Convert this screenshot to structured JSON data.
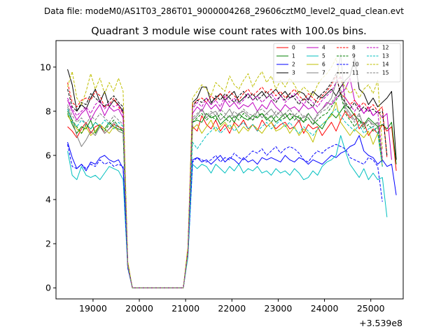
{
  "chart_data": {
    "type": "line",
    "suptitle": "Data file: modeM0/AS1T03_286T01_9000004268_29606cztM0_level2_quad_clean.evt",
    "title": "Quadrant 3 module wise count rates with 100.0s bins.",
    "xlabel": "",
    "ylabel": "",
    "x_offset_label": "+3.539e8",
    "xlim": [
      18200,
      25700
    ],
    "ylim": [
      -0.5,
      11.2
    ],
    "xticks": [
      19000,
      20000,
      21000,
      22000,
      23000,
      24000,
      25000
    ],
    "yticks": [
      0,
      2,
      4,
      6,
      8,
      10
    ],
    "x_start": 18450,
    "x_step": 100,
    "legend_position": "top-right",
    "series": [
      {
        "name": "0",
        "color": "#ff0000",
        "dash": "solid",
        "values": [
          7.3,
          7.1,
          6.8,
          7.2,
          7.5,
          7.0,
          7.3,
          7.4,
          7.0,
          7.2,
          7.4,
          7.3,
          7.2,
          1.0,
          0,
          0,
          0,
          0,
          0,
          0,
          0,
          0,
          0,
          0,
          0,
          0,
          1.6,
          7.3,
          7.1,
          7.8,
          7.4,
          7.2,
          7.6,
          7.1,
          7.4,
          7.0,
          7.5,
          7.3,
          7.6,
          7.2,
          7.4,
          7.1,
          7.6,
          7.3,
          7.5,
          7.2,
          7.4,
          7.5,
          7.2,
          7.3,
          7.6,
          7.0,
          7.4,
          7.2,
          7.3,
          6.9,
          7.2,
          7.5,
          7.1,
          7.6,
          8.0,
          7.7,
          7.9,
          7.2,
          7.5,
          6.9,
          7.2,
          7.0,
          7.4,
          7.1,
          7.3,
          5.3
        ]
      },
      {
        "name": "1",
        "color": "#008000",
        "dash": "solid",
        "values": [
          7.9,
          7.4,
          7.0,
          7.3,
          7.2,
          7.6,
          7.0,
          7.4,
          7.2,
          7.5,
          7.3,
          7.2,
          7.1,
          1.1,
          0,
          0,
          0,
          0,
          0,
          0,
          0,
          0,
          0,
          0,
          0,
          0,
          1.7,
          7.5,
          7.6,
          7.5,
          7.9,
          7.7,
          7.8,
          7.4,
          7.6,
          7.8,
          7.5,
          7.9,
          7.7,
          7.6,
          7.8,
          7.7,
          7.9,
          7.6,
          7.8,
          7.5,
          7.7,
          7.9,
          7.6,
          7.8,
          7.7,
          7.5,
          7.9,
          7.6,
          7.4,
          7.2,
          7.6,
          7.9,
          7.7,
          8.0,
          8.3,
          8.1,
          7.8,
          7.6,
          7.4,
          7.7,
          7.5,
          7.3,
          7.4,
          7.2,
          7.5,
          5.6
        ]
      },
      {
        "name": "2",
        "color": "#0000ff",
        "dash": "solid",
        "values": [
          6.6,
          5.9,
          5.4,
          5.6,
          5.3,
          5.7,
          5.6,
          5.9,
          6.0,
          5.8,
          5.7,
          5.8,
          5.4,
          1.0,
          0,
          0,
          0,
          0,
          0,
          0,
          0,
          0,
          0,
          0,
          0,
          0,
          1.5,
          5.8,
          5.9,
          5.7,
          5.8,
          5.6,
          5.8,
          6.0,
          5.7,
          5.9,
          5.8,
          5.6,
          5.9,
          5.7,
          5.8,
          5.6,
          5.9,
          5.8,
          5.9,
          5.8,
          5.7,
          6.0,
          5.8,
          5.7,
          5.9,
          5.8,
          5.6,
          5.8,
          5.7,
          5.6,
          5.8,
          6.0,
          5.9,
          6.1,
          6.2,
          6.4,
          6.5,
          6.9,
          6.2,
          6.0,
          5.9,
          5.6,
          5.8,
          5.5,
          5.6,
          4.2
        ]
      },
      {
        "name": "3",
        "color": "#000000",
        "dash": "solid",
        "values": [
          9.9,
          9.2,
          8.0,
          8.3,
          8.1,
          8.6,
          9.0,
          8.4,
          8.9,
          8.2,
          8.5,
          8.3,
          8.0,
          1.0,
          0,
          0,
          0,
          0,
          0,
          0,
          0,
          0,
          0,
          0,
          0,
          0,
          1.6,
          8.4,
          8.6,
          9.1,
          9.1,
          8.4,
          8.6,
          8.8,
          8.5,
          8.7,
          8.9,
          8.4,
          8.6,
          8.8,
          8.5,
          8.7,
          8.9,
          8.6,
          8.8,
          9.0,
          8.7,
          8.9,
          8.6,
          8.7,
          8.9,
          8.8,
          8.5,
          8.9,
          8.7,
          8.6,
          8.8,
          9.0,
          8.7,
          9.1,
          9.4,
          9.6,
          10.4,
          9.0,
          8.8,
          8.3,
          8.6,
          8.2,
          8.4,
          8.6,
          8.9,
          5.8
        ]
      },
      {
        "name": "4",
        "color": "#bf00bf",
        "dash": "solid",
        "values": [
          8.5,
          8.0,
          7.6,
          7.9,
          8.1,
          7.6,
          8.0,
          8.3,
          7.8,
          8.2,
          8.0,
          8.1,
          7.7,
          1.0,
          0,
          0,
          0,
          0,
          0,
          0,
          0,
          0,
          0,
          0,
          0,
          0,
          1.6,
          7.9,
          8.2,
          8.0,
          8.4,
          8.1,
          8.3,
          8.0,
          8.5,
          8.2,
          8.4,
          8.1,
          8.3,
          8.2,
          8.4,
          8.0,
          8.3,
          8.1,
          8.5,
          8.2,
          8.0,
          8.3,
          8.1,
          8.2,
          8.0,
          8.3,
          8.1,
          8.2,
          7.9,
          8.1,
          8.4,
          8.3,
          8.6,
          8.8,
          9.0,
          9.5,
          8.5,
          8.2,
          7.9,
          8.2,
          7.8,
          8.0,
          7.7,
          7.9,
          5.8
        ]
      },
      {
        "name": "5",
        "color": "#00bfbf",
        "dash": "solid",
        "values": [
          6.2,
          5.1,
          4.9,
          5.5,
          5.1,
          5.0,
          5.1,
          4.9,
          5.2,
          5.5,
          5.4,
          5.3,
          4.9,
          0.9,
          0,
          0,
          0,
          0,
          0,
          0,
          0,
          0,
          0,
          0,
          0,
          0,
          1.4,
          5.6,
          5.4,
          5.6,
          5.5,
          5.2,
          5.6,
          5.4,
          5.2,
          5.5,
          5.3,
          5.6,
          5.2,
          5.4,
          5.3,
          5.5,
          5.2,
          5.3,
          5.1,
          5.4,
          5.2,
          5.3,
          5.1,
          5.4,
          5.2,
          4.9,
          5.0,
          5.3,
          5.1,
          5.5,
          5.7,
          5.8,
          6.0,
          6.9,
          6.2,
          5.6,
          5.3,
          5.0,
          5.4,
          4.9,
          5.2,
          4.9,
          5.0,
          3.2
        ]
      },
      {
        "name": "6",
        "color": "#bfbf00",
        "dash": "solid",
        "values": [
          7.8,
          7.5,
          7.2,
          7.0,
          7.3,
          6.9,
          7.1,
          7.4,
          7.2,
          7.0,
          7.3,
          7.1,
          7.0,
          1.0,
          0,
          0,
          0,
          0,
          0,
          0,
          0,
          0,
          0,
          0,
          0,
          0,
          1.5,
          7.2,
          7.4,
          7.0,
          7.3,
          7.6,
          7.1,
          7.3,
          7.5,
          7.2,
          7.4,
          7.0,
          7.3,
          7.1,
          7.4,
          7.2,
          7.0,
          7.3,
          7.5,
          7.1,
          7.2,
          7.4,
          7.0,
          7.3,
          6.9,
          7.2,
          7.0,
          6.6,
          7.2,
          7.4,
          7.6,
          7.8,
          8.4,
          7.5,
          7.2,
          6.9,
          7.2,
          7.0,
          6.8,
          7.1,
          6.5,
          7.0,
          5.5
        ]
      },
      {
        "name": "7",
        "color": "#808080",
        "dash": "solid",
        "values": [
          8.2,
          7.6,
          6.9,
          6.4,
          6.7,
          7.1,
          6.9,
          7.3,
          7.0,
          7.2,
          7.5,
          7.1,
          7.0,
          1.0,
          0,
          0,
          0,
          0,
          0,
          0,
          0,
          0,
          0,
          0,
          0,
          0,
          1.6,
          7.6,
          7.8,
          8.1,
          7.7,
          7.9,
          8.0,
          7.6,
          7.8,
          8.1,
          7.7,
          7.9,
          8.0,
          7.8,
          7.6,
          8.0,
          7.7,
          7.9,
          8.1,
          7.8,
          8.0,
          7.7,
          7.9,
          7.8,
          7.5,
          7.8,
          7.7,
          7.4,
          7.9,
          8.1,
          8.3,
          8.6,
          9.3,
          10.6,
          8.2,
          7.9,
          7.6,
          7.9,
          7.3,
          7.6,
          7.4,
          7.5,
          5.8
        ]
      },
      {
        "name": "8",
        "color": "#ff0000",
        "dash": "dashed",
        "values": [
          9.3,
          8.4,
          8.2,
          8.5,
          8.6,
          8.5,
          8.9,
          8.7,
          8.2,
          8.3,
          8.6,
          8.2,
          7.9,
          1.1,
          0,
          0,
          0,
          0,
          0,
          0,
          0,
          0,
          0,
          0,
          0,
          0,
          1.8,
          8.3,
          8.5,
          8.6,
          8.4,
          8.7,
          8.5,
          8.8,
          8.6,
          8.9,
          8.7,
          8.5,
          8.8,
          9.0,
          8.7,
          8.9,
          9.1,
          8.8,
          9.0,
          8.7,
          8.9,
          8.6,
          8.8,
          9.0,
          8.7,
          8.5,
          8.8,
          8.6,
          8.4,
          8.7,
          8.9,
          9.2,
          9.6,
          8.8,
          8.6,
          8.3,
          8.5,
          8.2,
          8.4,
          8.1,
          8.3,
          8.0,
          8.2,
          5.9
        ]
      },
      {
        "name": "9",
        "color": "#008000",
        "dash": "dashed",
        "values": [
          8.0,
          7.6,
          7.3,
          7.0,
          7.4,
          7.2,
          7.5,
          7.3,
          7.1,
          7.4,
          7.6,
          7.3,
          7.1,
          1.0,
          0,
          0,
          0,
          0,
          0,
          0,
          0,
          0,
          0,
          0,
          0,
          0,
          1.6,
          7.5,
          7.7,
          7.9,
          7.6,
          7.8,
          7.6,
          7.9,
          7.7,
          7.5,
          7.8,
          7.6,
          7.9,
          7.7,
          7.6,
          7.8,
          7.9,
          7.7,
          7.5,
          7.8,
          7.6,
          7.7,
          7.9,
          7.6,
          7.8,
          7.5,
          7.7,
          7.4,
          7.6,
          7.8,
          7.9,
          8.2,
          8.5,
          8.8,
          7.9,
          7.6,
          7.3,
          7.6,
          7.2,
          7.4,
          7.1,
          7.3,
          5.5
        ]
      },
      {
        "name": "10",
        "color": "#0000ff",
        "dash": "dashed",
        "values": [
          6.5,
          5.5,
          5.4,
          5.6,
          5.4,
          5.6,
          5.5,
          5.8,
          5.6,
          5.7,
          5.5,
          5.6,
          5.5,
          0.9,
          0,
          0,
          0,
          0,
          0,
          0,
          0,
          0,
          0,
          0,
          0,
          0,
          1.5,
          5.7,
          5.9,
          5.8,
          5.7,
          5.8,
          6.0,
          5.7,
          5.9,
          5.8,
          6.1,
          5.9,
          5.8,
          6.0,
          6.2,
          6.1,
          6.3,
          6.0,
          6.2,
          6.4,
          6.1,
          6.3,
          6.4,
          6.3,
          6.1,
          5.8,
          5.7,
          6.0,
          6.2,
          6.1,
          6.3,
          6.4,
          6.5,
          6.4,
          6.3,
          5.9,
          5.8,
          5.7,
          5.6,
          5.9,
          5.8,
          5.5,
          3.9
        ]
      },
      {
        "name": "11",
        "color": "#000000",
        "dash": "dashed",
        "values": [
          9.0,
          8.2,
          8.0,
          8.4,
          8.3,
          8.8,
          8.6,
          8.4,
          8.2,
          8.5,
          8.7,
          8.4,
          8.2,
          1.1,
          0,
          0,
          0,
          0,
          0,
          0,
          0,
          0,
          0,
          0,
          0,
          0,
          1.7,
          8.2,
          8.5,
          8.4,
          8.6,
          8.3,
          8.7,
          8.5,
          8.8,
          8.6,
          8.4,
          8.7,
          8.9,
          8.6,
          8.8,
          8.5,
          8.7,
          8.9,
          8.6,
          8.4,
          8.7,
          8.5,
          8.8,
          8.6,
          8.3,
          8.6,
          8.4,
          8.2,
          8.6,
          8.8,
          9.0,
          9.3,
          9.7,
          8.7,
          8.4,
          8.1,
          8.4,
          8.0,
          8.2,
          8.0,
          8.1,
          7.9,
          8.0,
          6.0
        ]
      },
      {
        "name": "12",
        "color": "#bf00bf",
        "dash": "dashed",
        "values": [
          8.6,
          8.1,
          7.8,
          8.0,
          8.2,
          7.9,
          8.3,
          8.5,
          8.1,
          8.4,
          8.2,
          8.3,
          7.9,
          1.0,
          0,
          0,
          0,
          0,
          0,
          0,
          0,
          0,
          0,
          0,
          0,
          0,
          1.6,
          8.1,
          8.4,
          8.2,
          8.6,
          8.3,
          8.5,
          8.2,
          8.7,
          8.4,
          8.6,
          8.3,
          8.5,
          8.8,
          8.5,
          8.7,
          8.4,
          8.6,
          8.8,
          8.5,
          8.7,
          8.4,
          8.6,
          8.8,
          8.5,
          8.3,
          8.6,
          8.4,
          8.2,
          8.5,
          8.7,
          8.9,
          9.3,
          9.6,
          8.6,
          8.3,
          8.0,
          8.3,
          7.9,
          8.1,
          7.8,
          8.0,
          5.9
        ]
      },
      {
        "name": "13",
        "color": "#00bfbf",
        "dash": "dashed",
        "values": [
          8.1,
          7.5,
          7.3,
          7.6,
          7.4,
          7.2,
          7.5,
          7.3,
          7.6,
          7.4,
          7.2,
          7.5,
          7.3,
          1.0,
          0,
          0,
          0,
          0,
          0,
          0,
          0,
          0,
          0,
          0,
          0,
          0,
          1.5,
          6.6,
          6.3,
          6.6,
          6.9,
          7.1,
          7.3,
          7.0,
          7.2,
          7.4,
          7.1,
          7.3,
          7.5,
          7.2,
          7.4,
          7.1,
          7.3,
          7.5,
          7.2,
          7.4,
          7.6,
          7.3,
          7.5,
          7.2,
          7.0,
          7.3,
          7.1,
          6.9,
          7.2,
          7.4,
          7.6,
          7.9,
          8.1,
          7.8,
          7.5,
          7.3,
          7.1,
          7.4,
          7.0,
          7.2,
          7.3,
          7.0,
          5.5
        ]
      },
      {
        "name": "14",
        "color": "#bfbf00",
        "dash": "dashed",
        "values": [
          9.1,
          9.8,
          8.6,
          8.3,
          8.9,
          9.7,
          9.0,
          9.5,
          8.8,
          9.3,
          8.9,
          9.5,
          8.9,
          1.2,
          0,
          0,
          0,
          0,
          0,
          0,
          0,
          0,
          0,
          0,
          0,
          0,
          1.9,
          8.6,
          8.9,
          9.2,
          9.0,
          8.7,
          9.3,
          9.1,
          8.9,
          9.6,
          9.2,
          9.0,
          9.4,
          9.7,
          9.1,
          9.5,
          9.8,
          9.3,
          9.6,
          9.0,
          9.4,
          9.1,
          9.5,
          9.2,
          8.8,
          9.1,
          8.9,
          8.7,
          9.2,
          9.5,
          9.7,
          10.0,
          10.4,
          9.4,
          9.1,
          8.8,
          9.0,
          8.6,
          9.0,
          9.2,
          8.8,
          9.4,
          6.3
        ]
      },
      {
        "name": "15",
        "color": "#808080",
        "dash": "dashed",
        "values": [
          8.3,
          7.8,
          7.5,
          7.7,
          7.4,
          7.8,
          7.6,
          7.9,
          7.7,
          7.5,
          7.8,
          7.6,
          7.4,
          1.0,
          0,
          0,
          0,
          0,
          0,
          0,
          0,
          0,
          0,
          0,
          0,
          0,
          1.6,
          7.7,
          7.9,
          8.1,
          7.8,
          8.0,
          7.8,
          8.1,
          7.9,
          7.7,
          8.0,
          7.8,
          8.1,
          7.9,
          7.8,
          8.0,
          8.1,
          7.9,
          7.7,
          8.0,
          7.8,
          7.9,
          8.1,
          7.8,
          8.0,
          7.7,
          7.9,
          7.6,
          7.8,
          8.0,
          8.1,
          8.4,
          8.7,
          9.0,
          8.1,
          7.8,
          7.5,
          7.8,
          7.4,
          7.6,
          7.3,
          7.5,
          5.7
        ]
      }
    ]
  }
}
